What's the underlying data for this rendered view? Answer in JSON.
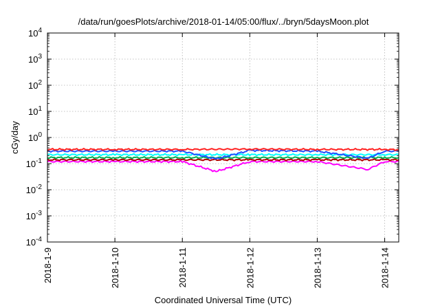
{
  "chart_data": {
    "type": "line",
    "title": "/data/run/goesPlots/archive/2018-01-14/05:00/flux/../bryn/5daysMoon.plot",
    "xlabel": "Coordinated Universal Time (UTC)",
    "ylabel": "cGy/day",
    "yscale": "log",
    "ylim": [
      0.0001,
      10000
    ],
    "xlim": [
      "2018-01-09 00:00",
      "2018-01-14 05:00"
    ],
    "x_ticks": [
      "2018-1-9",
      "2018-1-10",
      "2018-1-11",
      "2018-1-12",
      "2018-1-13",
      "2018-1-14"
    ],
    "y_ticks": [
      {
        "value": 0.0001,
        "base": "10",
        "exp": "-4"
      },
      {
        "value": 0.001,
        "base": "10",
        "exp": "-3"
      },
      {
        "value": 0.01,
        "base": "10",
        "exp": "-2"
      },
      {
        "value": 0.1,
        "base": "10",
        "exp": "-1"
      },
      {
        "value": 1,
        "base": "10",
        "exp": "0"
      },
      {
        "value": 10,
        "base": "10",
        "exp": "1"
      },
      {
        "value": 100,
        "base": "10",
        "exp": "2"
      },
      {
        "value": 1000,
        "base": "10",
        "exp": "3"
      },
      {
        "value": 10000,
        "base": "10",
        "exp": "4"
      }
    ],
    "grid": true,
    "series": [
      {
        "color": "#ff00ff",
        "x": [
          "2018-01-09 00:00",
          "2018-01-10 00:00",
          "2018-01-11 00:00",
          "2018-01-11 12:00",
          "2018-01-12 00:00",
          "2018-01-13 00:00",
          "2018-01-13 18:00",
          "2018-01-14 00:00",
          "2018-01-14 05:00"
        ],
        "values": [
          0.12,
          0.12,
          0.12,
          0.05,
          0.12,
          0.12,
          0.06,
          0.12,
          0.12
        ]
      },
      {
        "color": "#b00000",
        "x": [
          "2018-01-09 00:00",
          "2018-01-10 00:00",
          "2018-01-11 00:00",
          "2018-01-12 00:00",
          "2018-01-13 00:00",
          "2018-01-14 00:00",
          "2018-01-14 05:00"
        ],
        "values": [
          0.14,
          0.14,
          0.14,
          0.14,
          0.14,
          0.14,
          0.14
        ]
      },
      {
        "color": "#00b050",
        "x": [
          "2018-01-09 00:00",
          "2018-01-10 00:00",
          "2018-01-11 00:00",
          "2018-01-12 00:00",
          "2018-01-13 00:00",
          "2018-01-14 00:00",
          "2018-01-14 05:00"
        ],
        "values": [
          0.17,
          0.17,
          0.17,
          0.17,
          0.17,
          0.17,
          0.17
        ]
      },
      {
        "color": "#00ffff",
        "x": [
          "2018-01-09 00:00",
          "2018-01-10 00:00",
          "2018-01-11 00:00",
          "2018-01-12 00:00",
          "2018-01-13 00:00",
          "2018-01-14 00:00",
          "2018-01-14 05:00"
        ],
        "values": [
          0.22,
          0.22,
          0.22,
          0.22,
          0.22,
          0.22,
          0.22
        ]
      },
      {
        "color": "#2050ff",
        "x": [
          "2018-01-09 00:00",
          "2018-01-10 00:00",
          "2018-01-11 00:00",
          "2018-01-11 12:00",
          "2018-01-12 00:00",
          "2018-01-13 00:00",
          "2018-01-13 18:00",
          "2018-01-14 00:00",
          "2018-01-14 05:00"
        ],
        "values": [
          0.3,
          0.3,
          0.3,
          0.15,
          0.32,
          0.3,
          0.16,
          0.3,
          0.3
        ]
      },
      {
        "color": "#ff2020",
        "x": [
          "2018-01-09 00:00",
          "2018-01-10 00:00",
          "2018-01-11 00:00",
          "2018-01-12 00:00",
          "2018-01-13 00:00",
          "2018-01-14 00:00",
          "2018-01-14 05:00"
        ],
        "values": [
          0.35,
          0.35,
          0.35,
          0.36,
          0.35,
          0.35,
          0.34
        ]
      }
    ]
  }
}
